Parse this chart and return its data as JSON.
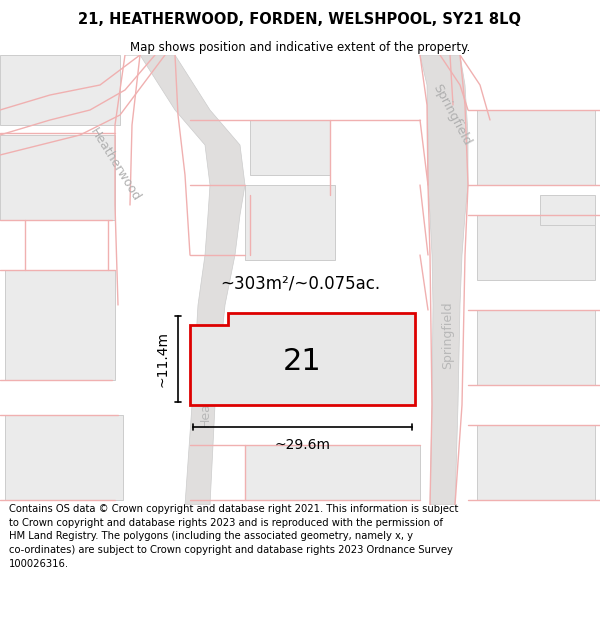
{
  "title": "21, HEATHERWOOD, FORDEN, WELSHPOOL, SY21 8LQ",
  "subtitle": "Map shows position and indicative extent of the property.",
  "area_text": "~303m²/~0.075ac.",
  "number_label": "21",
  "dim_width": "~29.6m",
  "dim_height": "~11.4m",
  "road_label_heatherwood": "Heatherwood",
  "road_label_springfield": "Springfield",
  "footer_text": "Contains OS data © Crown copyright and database right 2021. This information is subject to Crown copyright and database rights 2023 and is reproduced with the permission of HM Land Registry. The polygons (including the associated geometry, namely x, y co-ordinates) are subject to Crown copyright and database rights 2023 Ordnance Survey 100026316.",
  "map_bg": "#f7f5f2",
  "road_strip_color": "#e0dedd",
  "road_line_color": "#f0b0b0",
  "plot_fill": "#e8e8e8",
  "plot_edge": "#dd0000",
  "property_fill": "#ebebeb",
  "property_edge": "#c8c8c8",
  "title_fontsize": 10.5,
  "subtitle_fontsize": 8.5,
  "footer_fontsize": 7.2
}
